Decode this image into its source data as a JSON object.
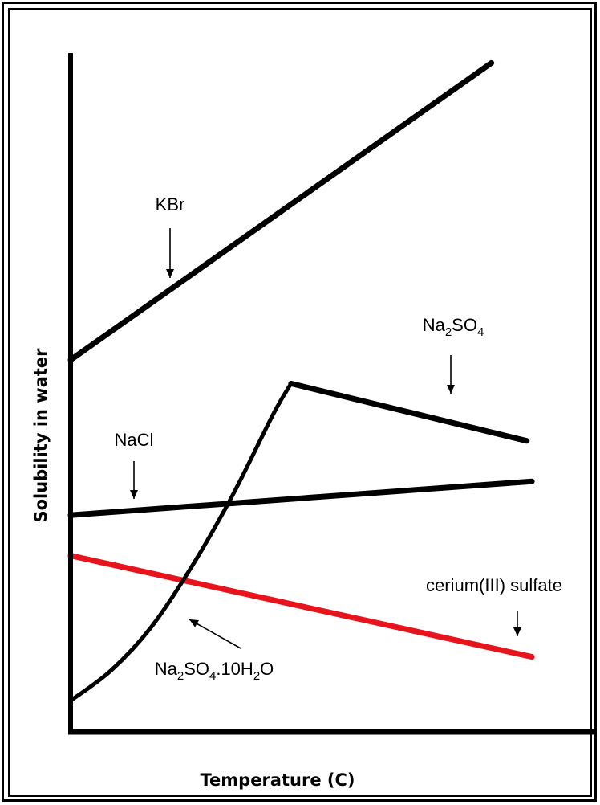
{
  "chart_data": {
    "type": "line",
    "title": "",
    "xlabel": "Temperature (C)",
    "ylabel": "Solubility in water",
    "xlim": [
      0,
      100
    ],
    "ylim": [
      0,
      100
    ],
    "grid": false,
    "legend": "none",
    "series": [
      {
        "name": "KBr",
        "color": "#000000",
        "x": [
          0,
          83
        ],
        "y": [
          55,
          99
        ]
      },
      {
        "name": "Na2SO4",
        "color": "#000000",
        "x": [
          43.5,
          90
        ],
        "y": [
          51.5,
          43
        ]
      },
      {
        "name": "NaCl",
        "color": "#000000",
        "x": [
          0,
          91
        ],
        "y": [
          32,
          37
        ]
      },
      {
        "name": "cerium(III) sulfate",
        "color": "#e8141c",
        "x": [
          0,
          91
        ],
        "y": [
          26,
          11
        ]
      },
      {
        "name": "Na2SO4.10H2O",
        "color": "#000000",
        "x": [
          0,
          8,
          16,
          24,
          32,
          40,
          43.5
        ],
        "y": [
          4.5,
          9,
          15.5,
          24.5,
          35,
          47,
          51.5
        ]
      }
    ],
    "annotations": [
      {
        "id": "kbr",
        "parts": [
          {
            "t": "KBr"
          }
        ]
      },
      {
        "id": "na2so4",
        "parts": [
          {
            "t": "Na"
          },
          {
            "t": "2",
            "sub": true
          },
          {
            "t": "SO"
          },
          {
            "t": "4",
            "sub": true
          }
        ]
      },
      {
        "id": "nacl",
        "parts": [
          {
            "t": "NaCl"
          }
        ]
      },
      {
        "id": "cerium",
        "parts": [
          {
            "t": "cerium(III) sulfate"
          }
        ]
      },
      {
        "id": "decahydrate",
        "parts": [
          {
            "t": "Na"
          },
          {
            "t": "2",
            "sub": true
          },
          {
            "t": "SO"
          },
          {
            "t": "4",
            "sub": true
          },
          {
            "t": ".10H"
          },
          {
            "t": "2",
            "sub": true
          },
          {
            "t": "O"
          }
        ]
      }
    ]
  }
}
